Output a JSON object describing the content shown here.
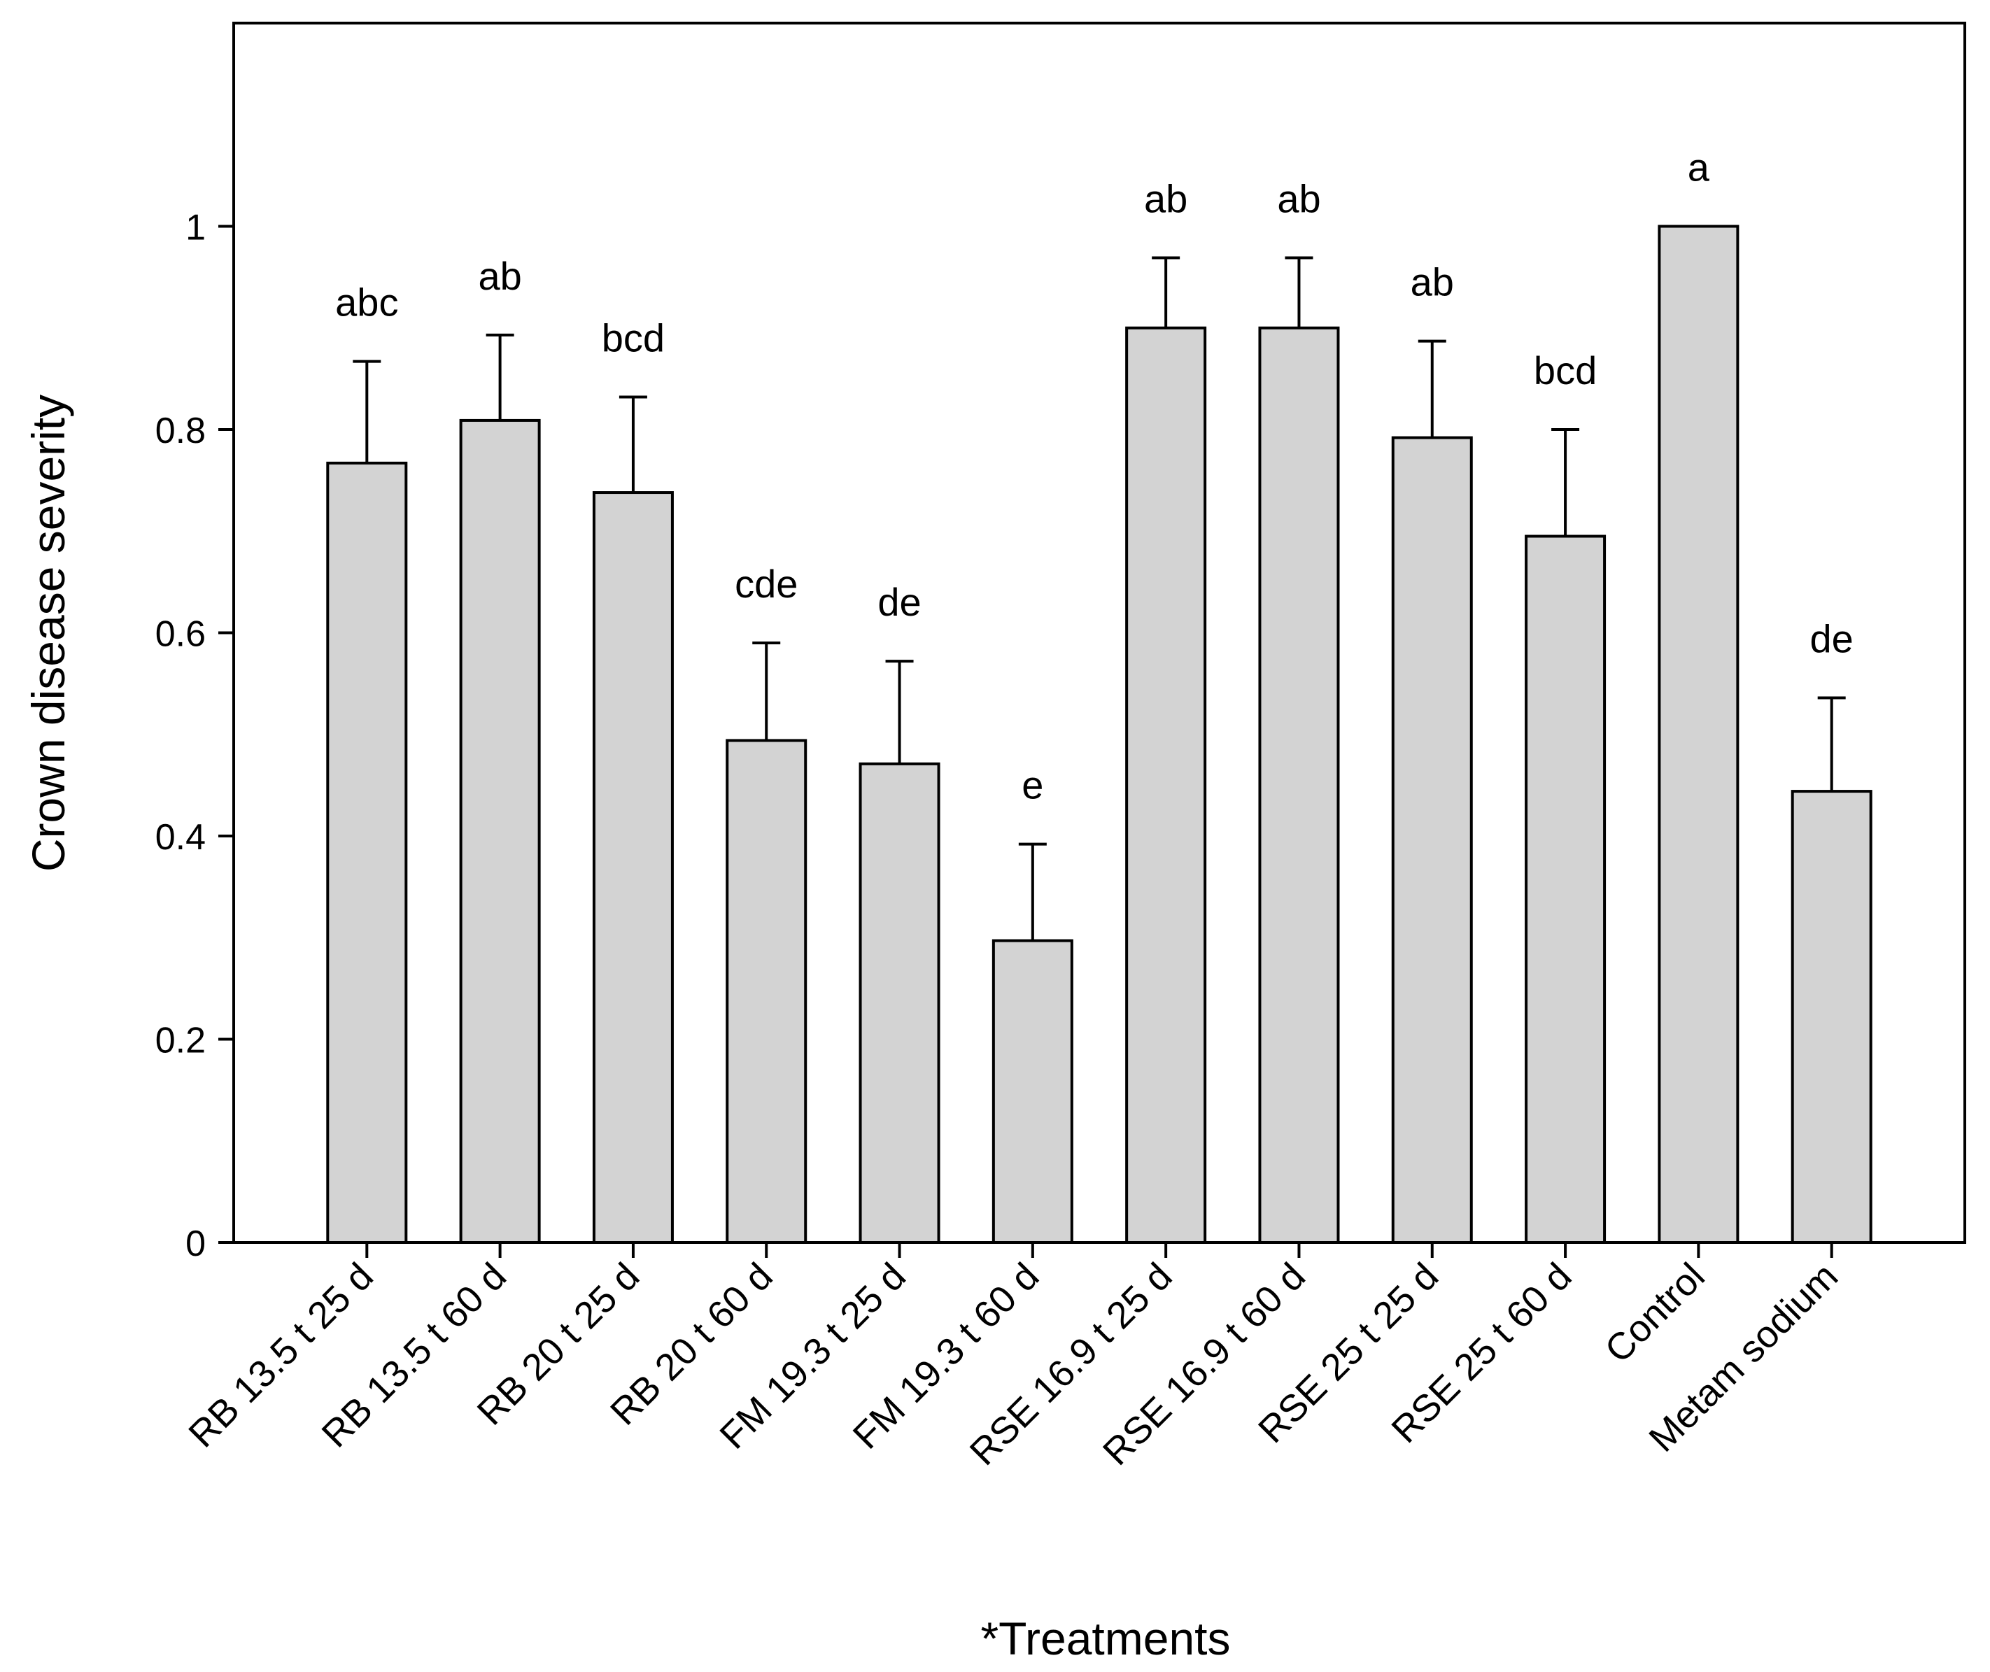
{
  "chart_data": {
    "type": "bar",
    "title": "",
    "xlabel": "*Treatments",
    "ylabel": "Crown disease severity",
    "ylim": [
      0,
      1.2
    ],
    "yticks": [
      0,
      0.2,
      0.4,
      0.6,
      0.8,
      1
    ],
    "ytick_labels": [
      "0",
      "0.2",
      "0.4",
      "0.6",
      "0.8",
      "1"
    ],
    "grid": false,
    "bar_color": "#d3d3d3",
    "edge_color": "#000000",
    "categories": [
      "RB 13.5 t 25 d",
      "RB 13.5 t 60 d",
      "RB 20 t 25 d",
      "RB 20 t 60 d",
      "FM 19.3 t 25 d",
      "FM 19.3 t 60 d",
      "RSE 16.9 t 25 d",
      "RSE 16.9 t 60 d",
      "RSE 25 t 25 d",
      "RSE 25 t 60 d",
      "Control",
      "Metam sodium"
    ],
    "values": [
      0.767,
      0.809,
      0.738,
      0.494,
      0.471,
      0.297,
      0.9,
      0.9,
      0.792,
      0.695,
      1.0,
      0.444
    ],
    "error_upper": [
      0.1,
      0.084,
      0.094,
      0.096,
      0.101,
      0.095,
      0.069,
      0.069,
      0.095,
      0.105,
      0,
      0.092
    ],
    "annotations": [
      "abc",
      "ab",
      "bcd",
      "cde",
      "de",
      "e",
      "ab",
      "ab",
      "ab",
      "bcd",
      "a",
      "de"
    ]
  }
}
